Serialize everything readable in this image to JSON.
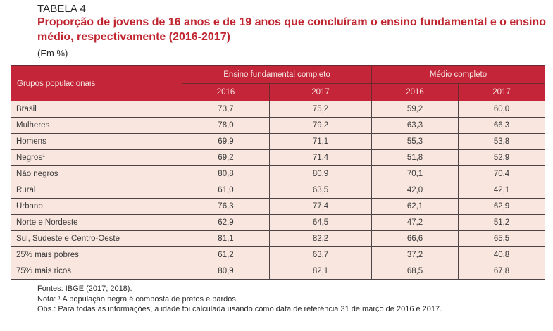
{
  "header": {
    "label": "TABELA 4",
    "title": "Proporção de jovens de 16 anos e de 19 anos que concluíram o ensino fundamental e o ensino médio, respectivamente (2016-2017)",
    "unit": "(Em %)"
  },
  "colors": {
    "accent": "#c42538",
    "row_bg": "#f8e6df"
  },
  "table": {
    "group_header": "Grupos populacionais",
    "column_groups": [
      "Ensino fundamental completo",
      "Médio completo"
    ],
    "years": [
      "2016",
      "2017",
      "2016",
      "2017"
    ],
    "rows": [
      {
        "name": "Brasil",
        "sup": "",
        "values": [
          "73,7",
          "75,2",
          "59,2",
          "60,0"
        ]
      },
      {
        "name": "Mulheres",
        "sup": "",
        "values": [
          "78,0",
          "79,2",
          "63,3",
          "66,3"
        ]
      },
      {
        "name": "Homens",
        "sup": "",
        "values": [
          "69,9",
          "71,1",
          "55,3",
          "53,8"
        ]
      },
      {
        "name": "Negros",
        "sup": "1",
        "values": [
          "69,2",
          "71,4",
          "51,8",
          "52,9"
        ]
      },
      {
        "name": "Não negros",
        "sup": "",
        "values": [
          "80,8",
          "80,9",
          "70,1",
          "70,4"
        ]
      },
      {
        "name": "Rural",
        "sup": "",
        "values": [
          "61,0",
          "63,5",
          "42,0",
          "42,1"
        ]
      },
      {
        "name": "Urbano",
        "sup": "",
        "values": [
          "76,3",
          "77,4",
          "62,1",
          "62,9"
        ]
      },
      {
        "name": "Norte e Nordeste",
        "sup": "",
        "values": [
          "62,9",
          "64,5",
          "47,2",
          "51,2"
        ]
      },
      {
        "name": "Sul, Sudeste e Centro-Oeste",
        "sup": "",
        "values": [
          "81,1",
          "82,2",
          "66,6",
          "65,5"
        ]
      },
      {
        "name": "25% mais pobres",
        "sup": "",
        "values": [
          "61,2",
          "63,7",
          "37,2",
          "40,8"
        ]
      },
      {
        "name": "75% mais ricos",
        "sup": "",
        "values": [
          "80,9",
          "82,1",
          "68,5",
          "67,8"
        ]
      }
    ]
  },
  "footnotes": {
    "sources": "Fontes: IBGE (2017; 2018).",
    "note": "Nota: ¹ A população negra é composta de pretos e pardos.",
    "obs": "Obs.: Para todas as informações, a idade foi calculada usando como data de referência 31 de março de 2016 e 2017."
  }
}
